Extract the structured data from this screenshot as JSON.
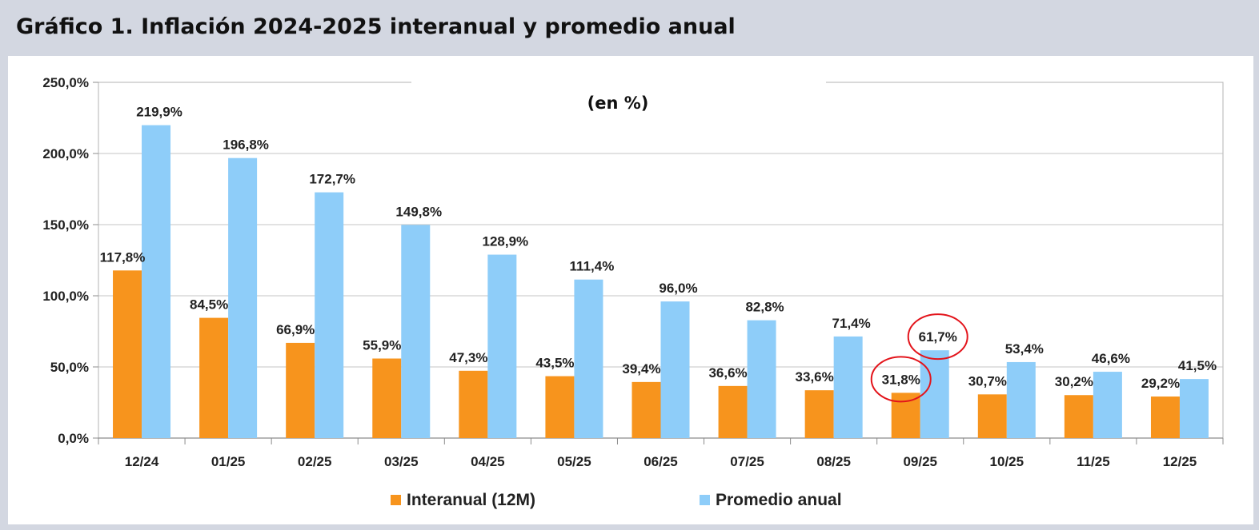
{
  "header": {
    "title": "Gráfico 1. Inflación 2024-2025 interanual y promedio anual"
  },
  "chart_data": {
    "type": "bar",
    "subtitle": "(en %)",
    "categories": [
      "12/24",
      "01/25",
      "02/25",
      "03/25",
      "04/25",
      "05/25",
      "06/25",
      "07/25",
      "08/25",
      "09/25",
      "10/25",
      "11/25",
      "12/25"
    ],
    "series": [
      {
        "name": "Interanual (12M)",
        "color": "#f7941d",
        "values": [
          117.8,
          84.5,
          66.9,
          55.9,
          47.3,
          43.5,
          39.4,
          36.6,
          33.6,
          31.8,
          30.7,
          30.2,
          29.2
        ],
        "labels": [
          "117,8%",
          "84,5%",
          "66,9%",
          "55,9%",
          "47,3%",
          "43,5%",
          "39,4%",
          "36,6%",
          "33,6%",
          "31,8%",
          "30,7%",
          "30,2%",
          "29,2%"
        ]
      },
      {
        "name": "Promedio anual",
        "color": "#8ecdf9",
        "values": [
          219.9,
          196.8,
          172.7,
          149.8,
          128.9,
          111.4,
          96.0,
          82.8,
          71.4,
          61.7,
          53.4,
          46.6,
          41.5
        ],
        "labels": [
          "219,9%",
          "196,8%",
          "172,7%",
          "149,8%",
          "128,9%",
          "111,4%",
          "96,0%",
          "82,8%",
          "71,4%",
          "61,7%",
          "53,4%",
          "46,6%",
          "41,5%"
        ]
      }
    ],
    "yticks": [
      0,
      50,
      100,
      150,
      200,
      250
    ],
    "ytick_labels": [
      "0,0%",
      "50,0%",
      "100,0%",
      "150,0%",
      "200,0%",
      "250,0%"
    ],
    "ylim": [
      0,
      250
    ],
    "grid": true,
    "legend": "bottom-center",
    "highlight": {
      "category": "09/25",
      "color": "#e3141b",
      "note": "both series labels circled"
    }
  }
}
